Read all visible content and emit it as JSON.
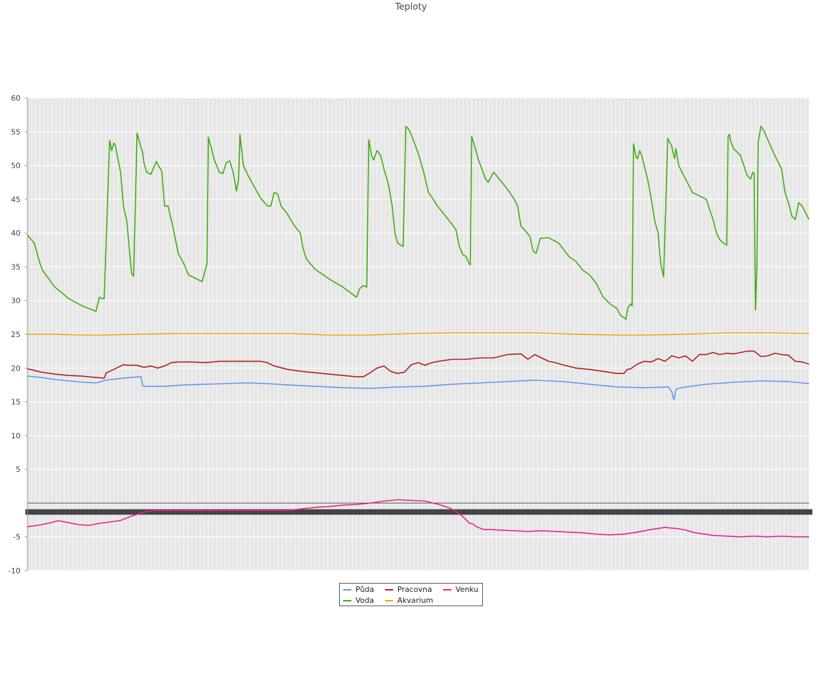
{
  "chart_data": {
    "type": "line",
    "title": "Teploty",
    "xlabel": "",
    "ylabel": "",
    "ylim": [
      -10,
      60
    ],
    "yticks": [
      60,
      55,
      50,
      45,
      40,
      35,
      30,
      25,
      20,
      15,
      10,
      5,
      -5,
      -10
    ],
    "grid": true,
    "legend_position": "bottom-center",
    "series": [
      {
        "name": "Půda",
        "color": "#6495ed",
        "x": [
          0,
          20,
          40,
          60,
          80,
          100,
          115,
          130,
          150,
          166,
          168,
          170,
          200,
          230,
          260,
          290,
          320,
          350,
          380,
          420,
          460,
          500,
          540,
          580,
          620,
          660,
          700,
          740,
          780,
          820,
          860,
          900,
          935,
          940,
          943,
          946,
          950,
          960,
          990,
          1030,
          1070,
          1110,
          1140
        ],
        "values": [
          18.8,
          18.6,
          18.3,
          18.1,
          17.9,
          17.8,
          18.2,
          18.4,
          18.6,
          18.7,
          17.4,
          17.3,
          17.3,
          17.5,
          17.6,
          17.7,
          17.8,
          17.7,
          17.5,
          17.3,
          17.1,
          17.0,
          17.2,
          17.3,
          17.6,
          17.8,
          18.0,
          18.2,
          18.0,
          17.6,
          17.2,
          17.1,
          17.2,
          16.5,
          15.3,
          16.8,
          17.0,
          17.2,
          17.6,
          17.9,
          18.1,
          18.0,
          17.7
        ]
      },
      {
        "name": "Voda",
        "color": "#3daa0e",
        "x": [
          0,
          10,
          18,
          22,
          40,
          60,
          80,
          100,
          105,
          108,
          112,
          120,
          123,
          126,
          128,
          132,
          136,
          140,
          145,
          152,
          155,
          160,
          163,
          166,
          168,
          170,
          174,
          180,
          188,
          192,
          196,
          200,
          205,
          212,
          220,
          228,
          235,
          255,
          262,
          264,
          266,
          268,
          272,
          280,
          285,
          290,
          295,
          300,
          305,
          308,
          310,
          315,
          322,
          330,
          340,
          350,
          355,
          360,
          365,
          370,
          378,
          390,
          398,
          402,
          405,
          408,
          420,
          440,
          460,
          480,
          485,
          490,
          495,
          498,
          502,
          505,
          510,
          515,
          520,
          527,
          532,
          536,
          540,
          545,
          548,
          552,
          555,
          558,
          562,
          570,
          578,
          585,
          592,
          598,
          610,
          620,
          625,
          630,
          635,
          640,
          644,
          646,
          648,
          652,
          658,
          664,
          668,
          672,
          680,
          690,
          700,
          705,
          710,
          715,
          720,
          725,
          733,
          735,
          738,
          742,
          748,
          760,
          775,
          790,
          800,
          810,
          820,
          830,
          840,
          850,
          860,
          865,
          870,
          873,
          876,
          880,
          882,
          884,
          888,
          890,
          893,
          896,
          900,
          905,
          910,
          915,
          920,
          922,
          924,
          928,
          934,
          940,
          942,
          944,
          946,
          950,
          960,
          970,
          990,
          1000,
          1005,
          1010,
          1015,
          1020,
          1022,
          1024,
          1026,
          1030,
          1040,
          1045,
          1050,
          1055,
          1058,
          1060,
          1062,
          1064,
          1066,
          1070,
          1074,
          1080,
          1090,
          1100,
          1105,
          1110,
          1115,
          1120,
          1125,
          1130,
          1135,
          1140
        ],
        "values": [
          39.7,
          38.5,
          35.6,
          34.5,
          32.0,
          30.3,
          29.2,
          28.4,
          30.5,
          30.3,
          30.3,
          53.7,
          52.2,
          53.3,
          53.1,
          51.0,
          49.0,
          44.0,
          41.8,
          34.0,
          33.6,
          54.8,
          53.7,
          52.6,
          52.0,
          50.4,
          49.0,
          48.7,
          50.6,
          49.8,
          49.2,
          44.0,
          44.0,
          41.0,
          37.0,
          35.5,
          33.8,
          32.8,
          35.5,
          54.2,
          53.3,
          52.8,
          51.0,
          49.0,
          48.8,
          50.4,
          50.7,
          49.0,
          46.2,
          48.0,
          54.6,
          50.0,
          48.5,
          47.0,
          45.2,
          44.0,
          44.0,
          46.0,
          45.8,
          44.0,
          43.0,
          41.0,
          40.0,
          37.8,
          36.7,
          36.0,
          34.6,
          33.2,
          32.0,
          30.5,
          31.8,
          32.2,
          32.0,
          53.8,
          51.5,
          50.8,
          52.2,
          51.5,
          49.5,
          47.0,
          44.0,
          40.0,
          38.5,
          38.2,
          38.0,
          55.8,
          55.5,
          55.0,
          54.0,
          51.8,
          49.0,
          46.0,
          45.0,
          44.0,
          42.5,
          41.2,
          40.5,
          38.0,
          36.8,
          36.5,
          35.5,
          35.3,
          54.3,
          53.0,
          50.8,
          49.2,
          48.0,
          47.5,
          49.0,
          47.8,
          46.5,
          45.8,
          45.0,
          44.0,
          41.0,
          40.5,
          39.5,
          38.5,
          37.3,
          37.0,
          39.2,
          39.3,
          38.5,
          36.5,
          35.8,
          34.5,
          33.8,
          32.5,
          30.5,
          29.5,
          28.8,
          27.8,
          27.5,
          27.2,
          29.0,
          29.5,
          29.2,
          53.2,
          51.2,
          51.0,
          52.2,
          51.5,
          49.8,
          47.8,
          45.0,
          41.8,
          40.0,
          37.5,
          35.3,
          33.5,
          54.0,
          52.8,
          51.8,
          51.0,
          52.5,
          50.0,
          48.0,
          46.0,
          45.0,
          42.0,
          40.0,
          39.0,
          38.5,
          38.2,
          54.3,
          54.6,
          53.5,
          52.5,
          51.5,
          50.0,
          48.5,
          48.0,
          49.0,
          48.8,
          28.6,
          35.0,
          53.5,
          55.8,
          55.2,
          53.8,
          51.5,
          49.5,
          46.0,
          44.5,
          42.5,
          42.0,
          44.5,
          44.0,
          43.0,
          42.0
        ]
      },
      {
        "name": "Pracovna",
        "color": "#b31b1b",
        "x": [
          0,
          20,
          40,
          60,
          80,
          100,
          112,
          115,
          120,
          130,
          140,
          148,
          150,
          160,
          170,
          180,
          190,
          200,
          210,
          220,
          240,
          260,
          280,
          300,
          320,
          340,
          350,
          360,
          380,
          400,
          420,
          440,
          460,
          480,
          490,
          500,
          510,
          520,
          530,
          540,
          550,
          560,
          570,
          580,
          590,
          600,
          620,
          640,
          660,
          680,
          700,
          720,
          730,
          740,
          750,
          760,
          770,
          780,
          800,
          820,
          840,
          860,
          870,
          875,
          880,
          890,
          900,
          910,
          920,
          930,
          940,
          950,
          960,
          970,
          980,
          990,
          1000,
          1010,
          1020,
          1030,
          1040,
          1050,
          1060,
          1070,
          1080,
          1090,
          1100,
          1110,
          1120,
          1130,
          1140
        ],
        "values": [
          19.9,
          19.4,
          19.1,
          18.9,
          18.8,
          18.6,
          18.5,
          19.3,
          19.5,
          20.0,
          20.5,
          20.4,
          20.4,
          20.4,
          20.1,
          20.3,
          20.0,
          20.3,
          20.8,
          20.9,
          20.9,
          20.8,
          21.0,
          21.0,
          21.0,
          21.0,
          20.8,
          20.3,
          19.8,
          19.5,
          19.3,
          19.1,
          18.9,
          18.7,
          18.7,
          19.3,
          20.0,
          20.3,
          19.5,
          19.2,
          19.4,
          20.5,
          20.8,
          20.4,
          20.8,
          21.0,
          21.3,
          21.3,
          21.5,
          21.5,
          22.0,
          22.1,
          21.3,
          22.0,
          21.5,
          21.0,
          20.8,
          20.5,
          20.0,
          19.8,
          19.5,
          19.2,
          19.2,
          19.8,
          19.9,
          20.6,
          21.0,
          20.9,
          21.4,
          21.0,
          21.8,
          21.5,
          21.8,
          21.0,
          22.0,
          22.0,
          22.3,
          22.0,
          22.2,
          22.1,
          22.3,
          22.5,
          22.5,
          21.7,
          21.8,
          22.2,
          22.0,
          21.9,
          21.0,
          20.9,
          20.6
        ]
      },
      {
        "name": "Akvarium",
        "color": "#f0a30a",
        "x": [
          0,
          40,
          80,
          110,
          160,
          220,
          280,
          320,
          380,
          440,
          500,
          560,
          620,
          680,
          740,
          800,
          860,
          900,
          960,
          1020,
          1080,
          1140
        ],
        "values": [
          25.0,
          25.0,
          24.9,
          24.9,
          25.0,
          25.1,
          25.1,
          25.1,
          25.1,
          24.9,
          24.9,
          25.1,
          25.2,
          25.2,
          25.2,
          25.0,
          24.9,
          24.9,
          25.0,
          25.2,
          25.2,
          25.1
        ]
      },
      {
        "name": "Venku",
        "color": "#e91e8c",
        "x": [
          0,
          15,
          30,
          45,
          60,
          75,
          90,
          105,
          120,
          135,
          150,
          165,
          175,
          185,
          195,
          210,
          230,
          260,
          290,
          320,
          350,
          380,
          405,
          425,
          440,
          460,
          480,
          500,
          520,
          540,
          560,
          580,
          600,
          615,
          625,
          635,
          645,
          650,
          655,
          660,
          665,
          675,
          690,
          710,
          730,
          750,
          770,
          790,
          810,
          830,
          850,
          870,
          890,
          910,
          930,
          950,
          960,
          970,
          980,
          990,
          1000,
          1020,
          1040,
          1060,
          1080,
          1100,
          1120,
          1140
        ],
        "values": [
          -3.5,
          -3.3,
          -3.0,
          -2.6,
          -2.9,
          -3.2,
          -3.3,
          -3.0,
          -2.8,
          -2.6,
          -2.0,
          -1.5,
          -1.2,
          -1.1,
          -1.1,
          -1.1,
          -1.1,
          -1.1,
          -1.1,
          -1.1,
          -1.1,
          -1.1,
          -0.8,
          -0.6,
          -0.5,
          -0.3,
          -0.2,
          0.0,
          0.3,
          0.5,
          0.4,
          0.3,
          -0.2,
          -0.7,
          -1.2,
          -2.0,
          -3.0,
          -3.1,
          -3.5,
          -3.7,
          -3.9,
          -3.9,
          -4.0,
          -4.1,
          -4.2,
          -4.1,
          -4.2,
          -4.3,
          -4.4,
          -4.6,
          -4.7,
          -4.6,
          -4.3,
          -3.9,
          -3.6,
          -3.8,
          -4.0,
          -4.3,
          -4.5,
          -4.6,
          -4.8,
          -4.9,
          -5.0,
          -4.9,
          -5.0,
          -4.9,
          -5.0,
          -5.0
        ]
      }
    ]
  }
}
